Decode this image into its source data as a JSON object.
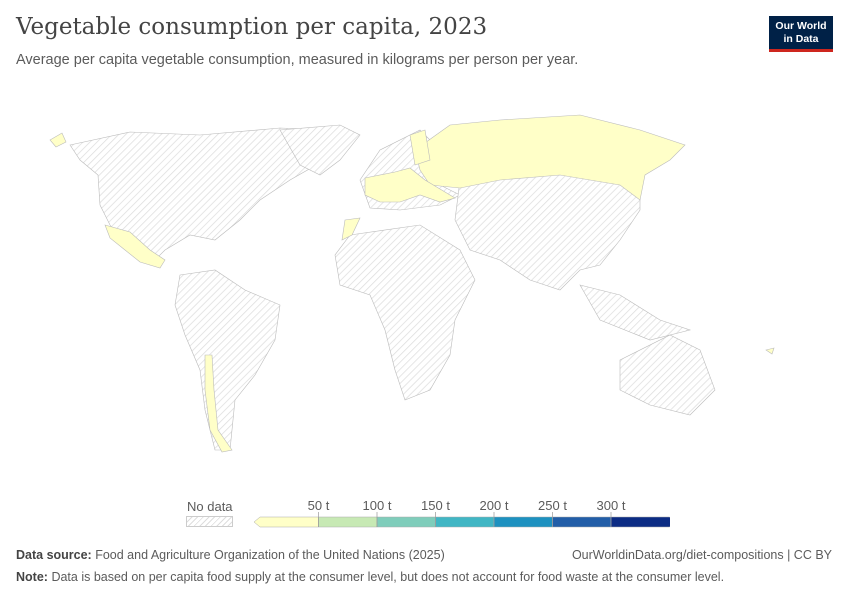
{
  "header": {
    "title": "Vegetable consumption per capita, 2023",
    "subtitle": "Average per capita vegetable consumption, measured in kilograms per person per year."
  },
  "logo": {
    "line1": "Our World",
    "line2": "in Data"
  },
  "legend": {
    "no_data_label": "No data",
    "bins": [
      {
        "label": "",
        "color": "#ffffc8"
      },
      {
        "label": "50 t",
        "color": "#c7e9b4"
      },
      {
        "label": "100 t",
        "color": "#7fcdbb"
      },
      {
        "label": "150 t",
        "color": "#41b6c4"
      },
      {
        "label": "200 t",
        "color": "#1d91c0"
      },
      {
        "label": "250 t",
        "color": "#225ea8"
      },
      {
        "label": "300 t",
        "color": "#0c2c84"
      }
    ],
    "tick_labels": [
      "50 t",
      "100 t",
      "150 t",
      "200 t",
      "250 t",
      "300 t"
    ]
  },
  "chart_data": {
    "type": "choropleth",
    "year": 2023,
    "unit": "t",
    "bins": [
      0,
      50,
      100,
      150,
      200,
      250,
      300
    ],
    "countries_with_data": {
      "bin": "0–50",
      "countries": [
        "Russia",
        "Mexico",
        "Chile",
        "France",
        "Germany",
        "Poland",
        "Italy",
        "Belgium",
        "Netherlands",
        "Switzerland",
        "Austria",
        "Czechia",
        "Hungary",
        "Slovakia",
        "Romania",
        "Bulgaria",
        "Finland",
        "Estonia",
        "Latvia",
        "Lithuania",
        "Morocco",
        "New Caledonia"
      ]
    },
    "no_data_color": "hatched grey"
  },
  "footer": {
    "source_label": "Data source:",
    "source": "Food and Agriculture Organization of the United Nations (2025)",
    "url": "OurWorldinData.org/diet-compositions | CC BY",
    "note_label": "Note:",
    "note": "Data is based on per capita food supply at the consumer level, but does not account for food waste at the consumer level."
  }
}
